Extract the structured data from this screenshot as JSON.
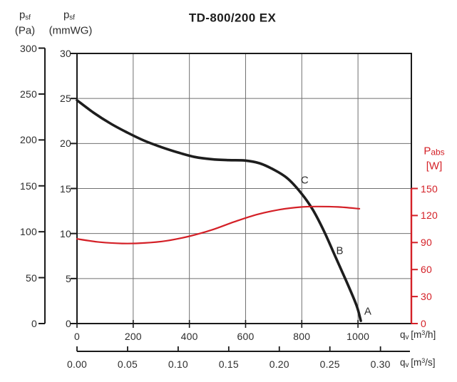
{
  "title": "TD-800/200 EX",
  "colors": {
    "pressure_curve": "#1d1d1d",
    "power_curve": "#d42027",
    "grid": "#707070",
    "border": "#1a1a1a",
    "text": "#2d2d2d",
    "power_text": "#d42027"
  },
  "axis_labels": {
    "pa": {
      "base": "p",
      "sub": "sf",
      "unit": "(Pa)"
    },
    "mmwg": {
      "base": "p",
      "sub": "sf",
      "unit": "(mmWG)"
    },
    "pabs": {
      "base": "P",
      "sub": "abs",
      "unit": "[W]"
    },
    "x_m3h": {
      "base": "q",
      "sub": "v",
      "unit_pre": "[m",
      "sup": "3",
      "unit_post": "/h]"
    },
    "x_m3s": {
      "base": "q",
      "sub": "v",
      "unit_pre": "[m",
      "sup": "3",
      "unit_post": "/s]"
    }
  },
  "chart_data": {
    "type": "line",
    "title": "TD-800/200 EX",
    "grid": true,
    "axes": {
      "x_m3h": {
        "label": "qv [m3/h]",
        "range": [
          0,
          1190
        ],
        "ticks": [
          "0",
          "200",
          "400",
          "600",
          "800",
          "1000"
        ]
      },
      "x_m3s": {
        "label": "qv [m3/s]",
        "range": [
          0,
          0.33
        ],
        "ticks": [
          "0.00",
          "0.05",
          "0.10",
          "0.15",
          "0.20",
          "0.25",
          "0.30"
        ]
      },
      "y_pa": {
        "label": "psf (Pa)",
        "range": [
          0,
          300
        ],
        "ticks": [
          "300",
          "250",
          "200",
          "150",
          "100",
          "50",
          "0"
        ]
      },
      "y_mmwg": {
        "label": "psf (mmWG)",
        "range": [
          0,
          30
        ],
        "ticks": [
          "30",
          "25",
          "20",
          "15",
          "10",
          "5",
          "0"
        ]
      },
      "y_w": {
        "label": "Pabs [W]",
        "range": [
          0,
          150
        ],
        "ticks": [
          "150",
          "120",
          "90",
          "60",
          "30",
          "0"
        ]
      }
    },
    "series": [
      {
        "name": "static-pressure-psf",
        "axis": "y_mmwg",
        "color": "#1d1d1d",
        "width": 3.6,
        "points": [
          [
            0,
            24.8
          ],
          [
            60,
            23.4
          ],
          [
            120,
            22.2
          ],
          [
            180,
            21.2
          ],
          [
            240,
            20.3
          ],
          [
            300,
            19.6
          ],
          [
            360,
            19.0
          ],
          [
            420,
            18.5
          ],
          [
            480,
            18.25
          ],
          [
            540,
            18.15
          ],
          [
            600,
            18.1
          ],
          [
            650,
            17.8
          ],
          [
            700,
            17.1
          ],
          [
            750,
            16.1
          ],
          [
            800,
            14.4
          ],
          [
            840,
            12.6
          ],
          [
            880,
            10.2
          ],
          [
            920,
            7.4
          ],
          [
            960,
            4.6
          ],
          [
            995,
            2.0
          ],
          [
            1010,
            0.3
          ]
        ]
      },
      {
        "name": "absorbed-power-pabs",
        "axis": "y_w",
        "color": "#d42027",
        "width": 2.2,
        "points": [
          [
            0,
            94
          ],
          [
            80,
            90.5
          ],
          [
            160,
            89
          ],
          [
            240,
            89.5
          ],
          [
            320,
            92
          ],
          [
            400,
            97
          ],
          [
            480,
            104
          ],
          [
            560,
            113
          ],
          [
            640,
            121
          ],
          [
            720,
            126.5
          ],
          [
            800,
            129.5
          ],
          [
            860,
            130
          ],
          [
            930,
            129.5
          ],
          [
            1005,
            127.5
          ]
        ]
      }
    ],
    "curve_point_labels": [
      {
        "text": "C",
        "qv": 810,
        "mmwg": 15.9
      },
      {
        "text": "B",
        "qv": 935,
        "mmwg": 8.1
      },
      {
        "text": "A",
        "qv": 1035,
        "mmwg": 1.35
      }
    ]
  }
}
